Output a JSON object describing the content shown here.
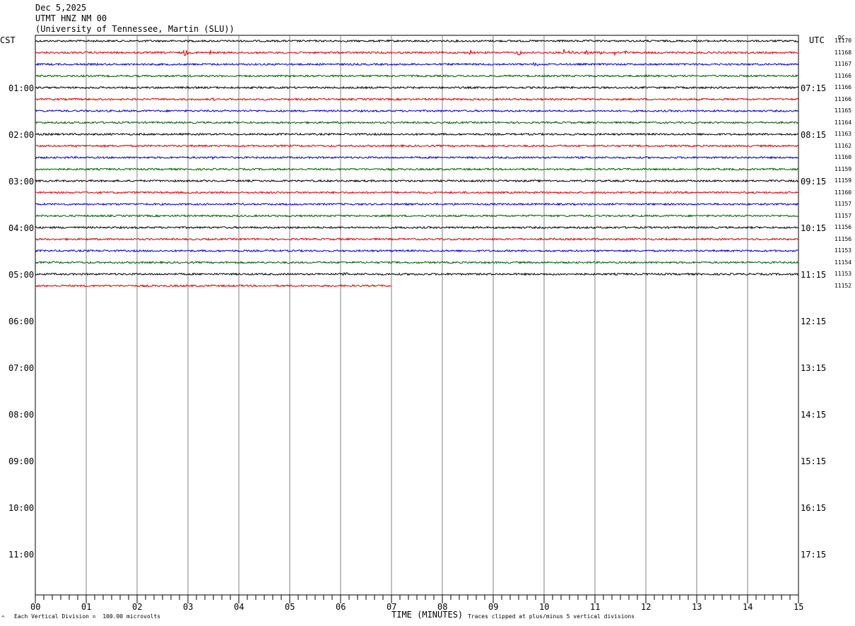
{
  "header": {
    "date": "Dec 5,2025",
    "station": "UTMT HNZ NM 00",
    "institution": "(University of Tennessee, Martin (SLU))"
  },
  "left_zone_label": "CST",
  "right_zone_label": "UTC",
  "dc_label": "DC",
  "footer": {
    "scale_note": "Each Vertical Division =  100.00 microvolts",
    "xlabel": "TIME (MINUTES)",
    "clip_note": "Traces clipped at plus/minus 5 vertical divisions",
    "corner_mark": "^"
  },
  "chart_data": {
    "type": "line",
    "title": "UTMT HNZ NM 00",
    "xlabel": "TIME (MINUTES)",
    "xlim": [
      0,
      15
    ],
    "x_ticks": [
      "00",
      "01",
      "02",
      "03",
      "04",
      "05",
      "06",
      "07",
      "08",
      "09",
      "10",
      "11",
      "12",
      "13",
      "14",
      "15"
    ],
    "left_hour_labels": [
      "01:00",
      "02:00",
      "03:00",
      "04:00",
      "05:00",
      "06:00",
      "07:00",
      "08:00",
      "09:00",
      "10:00",
      "11:00"
    ],
    "right_hour_labels": [
      "07:15",
      "08:15",
      "09:15",
      "10:15",
      "11:15",
      "12:15",
      "13:15",
      "14:15",
      "15:15",
      "16:15",
      "17:15"
    ],
    "trace_colors": [
      "#000000",
      "#e00000",
      "#0000d0",
      "#006000"
    ],
    "dc_offsets": [
      "11170",
      "11168",
      "11167",
      "11166",
      "11166",
      "11166",
      "11165",
      "11164",
      "11163",
      "11162",
      "11160",
      "11159",
      "11159",
      "11160",
      "11157",
      "11157",
      "11156",
      "11156",
      "11153",
      "11154",
      "11153",
      "11152"
    ],
    "trace_end_minutes": [
      15,
      15,
      15,
      15,
      15,
      15,
      15,
      15,
      15,
      15,
      15,
      15,
      15,
      15,
      15,
      15,
      15,
      15,
      15,
      15,
      15,
      7
    ],
    "events": [
      {
        "trace": 1,
        "minutes": [
          2.95,
          3.45,
          8.55,
          8.6,
          9.5,
          9.55,
          10.4,
          10.5,
          10.55,
          10.85,
          11.1,
          11.4,
          11.6
        ],
        "amp": [
          6,
          3,
          4,
          3,
          5,
          4,
          5,
          4,
          4,
          4,
          4,
          4,
          3
        ]
      },
      {
        "trace": 2,
        "minutes": [
          9.8,
          9.85
        ],
        "amp": [
          3,
          3
        ]
      },
      {
        "trace": 5,
        "minutes": [
          3.5
        ],
        "amp": [
          2
        ]
      },
      {
        "trace": 10,
        "minutes": [
          3.5
        ],
        "amp": [
          5
        ]
      },
      {
        "trace": 20,
        "minutes": [
          6.1,
          7.4
        ],
        "amp": [
          3,
          2
        ]
      }
    ]
  }
}
